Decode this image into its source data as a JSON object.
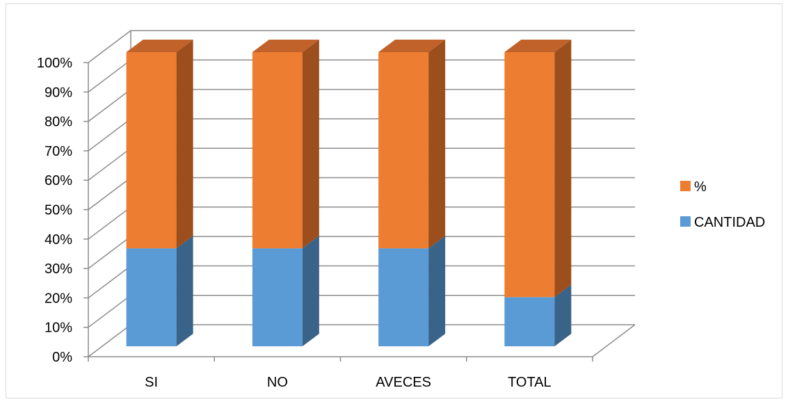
{
  "chart_data": {
    "type": "bar",
    "stacked": "percent",
    "three_d": true,
    "categories": [
      "SI",
      "NO",
      "AVECES",
      "TOTAL"
    ],
    "series": [
      {
        "name": "CANTIDAD",
        "values": [
          33.3,
          33.3,
          33.3,
          16.7
        ],
        "color": "#5b9bd5",
        "side_color": "#3a6389",
        "top_color": "#41709c"
      },
      {
        "name": "%",
        "values": [
          66.7,
          66.7,
          66.7,
          83.3
        ],
        "color": "#ed7d31",
        "side_color": "#9c4f1c",
        "top_color": "#c0622a"
      }
    ],
    "ylim": [
      0,
      100
    ],
    "yticks": [
      "0%",
      "10%",
      "20%",
      "30%",
      "40%",
      "50%",
      "60%",
      "70%",
      "80%",
      "90%",
      "100%"
    ],
    "grid": true,
    "legend": {
      "placement": "right",
      "entries": [
        "%",
        "CANTIDAD"
      ]
    },
    "title": "",
    "xlabel": "",
    "ylabel": ""
  }
}
